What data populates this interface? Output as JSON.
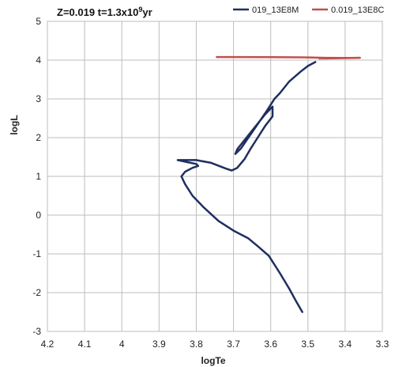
{
  "chart_data": {
    "type": "line",
    "title_main": "Z=0.019  t=1.3x10",
    "title_exp": "9",
    "title_unit": "yr",
    "xlabel": "logTe",
    "ylabel": "logL",
    "xlim": [
      4.2,
      3.3
    ],
    "ylim": [
      -3,
      5
    ],
    "x_reversed": true,
    "x_ticks": [
      4.2,
      4.1,
      4.0,
      3.9,
      3.8,
      3.7,
      3.6,
      3.5,
      3.4,
      3.3
    ],
    "x_tick_labels": [
      "4.2",
      "4.1",
      "4",
      "3.9",
      "3.8",
      "3.7",
      "3.6",
      "3.5",
      "3.4",
      "3.3"
    ],
    "y_ticks": [
      -3,
      -2,
      -1,
      0,
      1,
      2,
      3,
      4,
      5
    ],
    "y_tick_labels": [
      "-3",
      "-2",
      "-1",
      "0",
      "1",
      "2",
      "3",
      "4",
      "5"
    ],
    "grid": true,
    "legend_position": "top-right",
    "series": [
      {
        "name": "019_13E8M",
        "color": "#1f2f5f",
        "points": [
          [
            3.515,
            -2.5
          ],
          [
            3.53,
            -2.25
          ],
          [
            3.55,
            -1.9
          ],
          [
            3.575,
            -1.5
          ],
          [
            3.605,
            -1.05
          ],
          [
            3.635,
            -0.8
          ],
          [
            3.66,
            -0.6
          ],
          [
            3.7,
            -0.4
          ],
          [
            3.74,
            -0.15
          ],
          [
            3.78,
            0.2
          ],
          [
            3.81,
            0.5
          ],
          [
            3.83,
            0.8
          ],
          [
            3.84,
            1.0
          ],
          [
            3.83,
            1.12
          ],
          [
            3.81,
            1.22
          ],
          [
            3.795,
            1.27
          ],
          [
            3.8,
            1.32
          ],
          [
            3.82,
            1.36
          ],
          [
            3.85,
            1.42
          ],
          [
            3.8,
            1.42
          ],
          [
            3.76,
            1.35
          ],
          [
            3.72,
            1.2
          ],
          [
            3.705,
            1.15
          ],
          [
            3.69,
            1.22
          ],
          [
            3.67,
            1.45
          ],
          [
            3.655,
            1.7
          ],
          [
            3.635,
            2.0
          ],
          [
            3.615,
            2.3
          ],
          [
            3.595,
            2.55
          ],
          [
            3.595,
            2.8
          ],
          [
            3.615,
            2.6
          ],
          [
            3.64,
            2.3
          ],
          [
            3.665,
            2.0
          ],
          [
            3.69,
            1.7
          ],
          [
            3.695,
            1.58
          ],
          [
            3.68,
            1.72
          ],
          [
            3.66,
            2.0
          ],
          [
            3.635,
            2.35
          ],
          [
            3.61,
            2.7
          ],
          [
            3.59,
            3.0
          ],
          [
            3.575,
            3.15
          ],
          [
            3.55,
            3.45
          ],
          [
            3.52,
            3.7
          ],
          [
            3.5,
            3.85
          ],
          [
            3.48,
            3.95
          ]
        ]
      },
      {
        "name": "0.019_13E8C",
        "color": "#c0504d",
        "points": [
          [
            3.745,
            4.08
          ],
          [
            3.7,
            4.08
          ],
          [
            3.6,
            4.075
          ],
          [
            3.5,
            4.07
          ],
          [
            3.45,
            4.06
          ],
          [
            3.4,
            4.055
          ],
          [
            3.36,
            4.06
          ],
          [
            3.42,
            4.05
          ],
          [
            3.47,
            4.04
          ]
        ]
      }
    ]
  }
}
